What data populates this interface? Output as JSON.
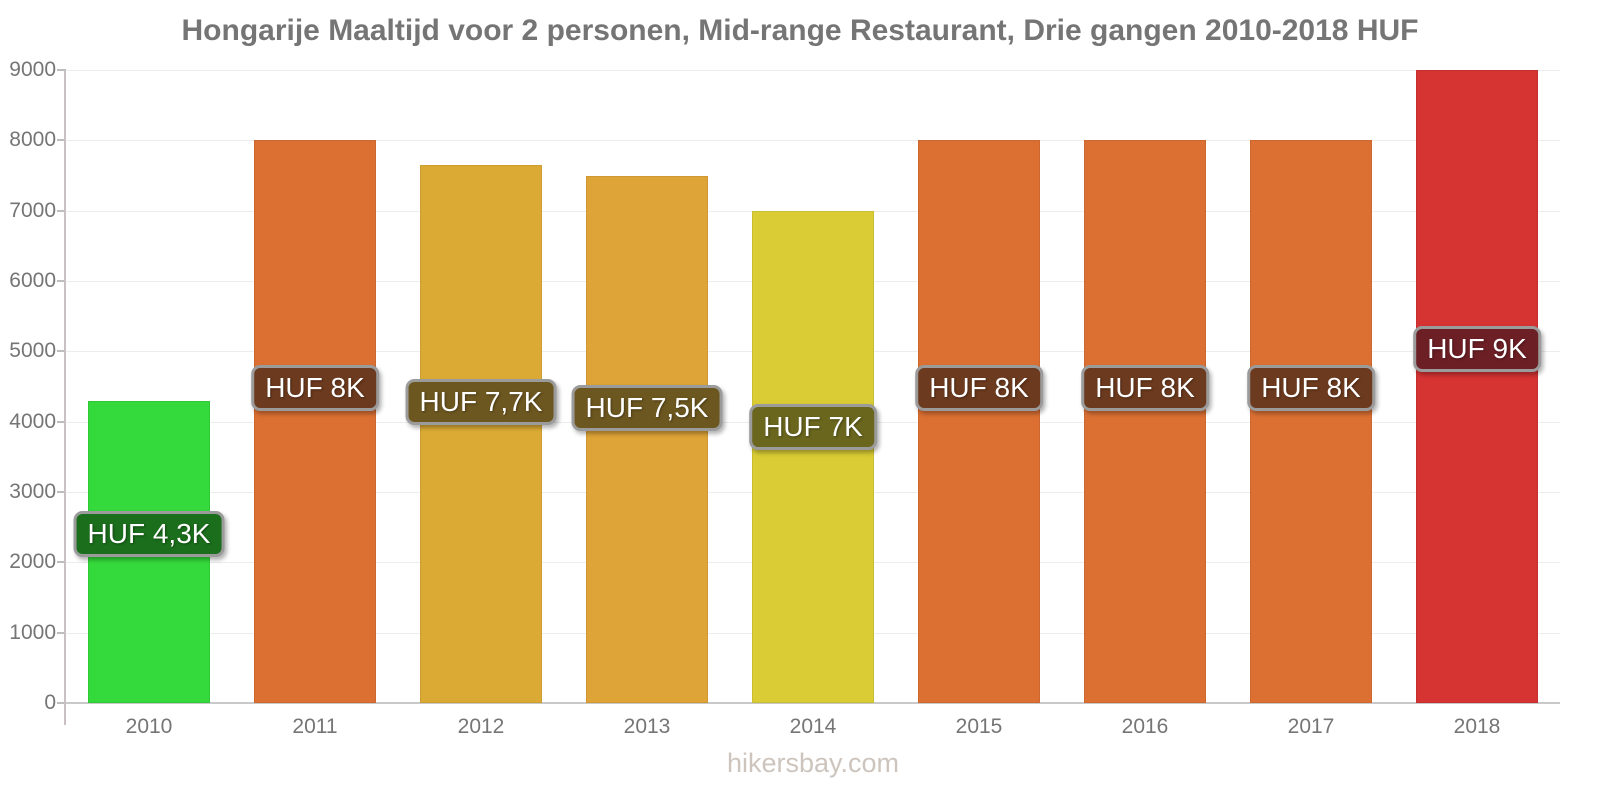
{
  "header": {
    "title": "Hongarije Maaltijd voor 2 personen, Mid-range Restaurant, Drie gangen 2010-2018 HUF"
  },
  "footer": {
    "watermark": "hikersbay.com"
  },
  "chart_data": {
    "type": "bar",
    "title": "Hongarije Maaltijd voor 2 personen, Mid-range Restaurant, Drie gangen 2010-2018 HUF",
    "currency": "HUF",
    "categories": [
      "2010",
      "2011",
      "2012",
      "2013",
      "2014",
      "2015",
      "2016",
      "2017",
      "2018"
    ],
    "values": [
      4300,
      8000,
      7650,
      7500,
      7000,
      8000,
      8000,
      8000,
      9000
    ],
    "bar_labels": [
      "HUF 4,3K",
      "HUF 8K",
      "HUF 7,7K",
      "HUF 7,5K",
      "HUF 7K",
      "HUF 8K",
      "HUF 8K",
      "HUF 8K",
      "HUF 9K"
    ],
    "bar_colors": [
      "#34D93B",
      "#DC7033",
      "#DBAA35",
      "#DEA437",
      "#D9CC35",
      "#DC7033",
      "#DC7033",
      "#DC7033",
      "#D63333"
    ],
    "bar_label_bg": [
      "#1B6E1C",
      "#6C3A1E",
      "#6D5720",
      "#6D5720",
      "#6A661E",
      "#6C3A1E",
      "#6C3A1E",
      "#6C3A1E",
      "#6C1F25"
    ],
    "xlabel": "",
    "ylabel": "",
    "ylim": [
      0,
      9000
    ],
    "yticks": [
      0,
      1000,
      2000,
      3000,
      4000,
      5000,
      6000,
      7000,
      8000,
      9000
    ],
    "grid": true,
    "legend_position": "none"
  },
  "style": {
    "title_color": "#757575",
    "axis_text_color": "#757575",
    "grid_color": "#ededed",
    "baseline_color": "#c9c9c9",
    "axis_line_color": "#c9c1c1",
    "label_border_color": "#9b9b9b",
    "watermark_color": "#cdc5bd"
  }
}
